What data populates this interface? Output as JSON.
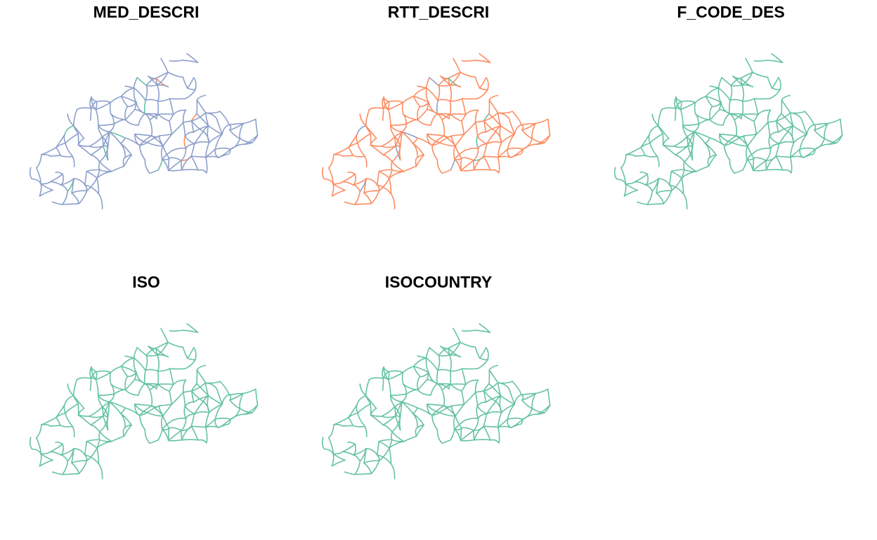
{
  "colors": {
    "teal": "#66c2a5",
    "orange": "#fc8d62",
    "blue": "#8da0cb"
  },
  "panels": [
    {
      "title": "MED_DESCRI",
      "base_color": "#8da0cb",
      "accent_colors": [
        "#66c2a5",
        "#fc8d62"
      ]
    },
    {
      "title": "RTT_DESCRI",
      "base_color": "#fc8d62",
      "accent_colors": [
        "#8da0cb",
        "#66c2a5"
      ]
    },
    {
      "title": "F_CODE_DES",
      "base_color": "#66c2a5",
      "accent_colors": []
    },
    {
      "title": "ISO",
      "base_color": "#66c2a5",
      "accent_colors": []
    },
    {
      "title": "ISOCOUNTRY",
      "base_color": "#66c2a5",
      "accent_colors": []
    }
  ]
}
